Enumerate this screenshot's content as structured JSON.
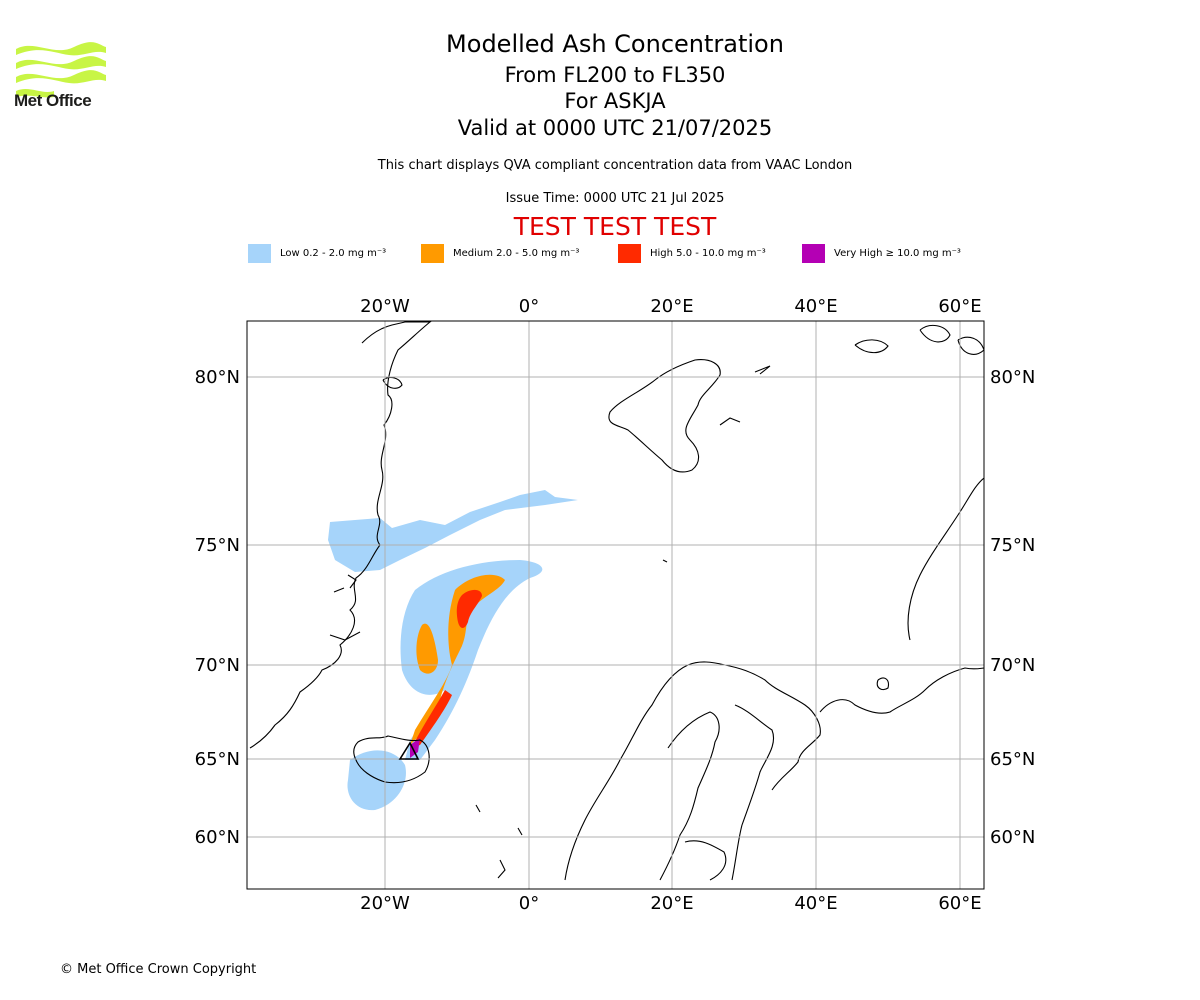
{
  "header": {
    "title": "Modelled Ash Concentration",
    "flight_levels": "From FL200 to FL350",
    "volcano": "For ASKJA",
    "valid_time": "Valid at 0000 UTC 21/07/2025",
    "description": "This chart displays QVA compliant concentration data from VAAC London",
    "issue_time": "Issue Time: 0000 UTC 21 Jul 2025",
    "test_banner": "TEST TEST TEST"
  },
  "logo": {
    "name": "Met Office",
    "accent_color": "#c8f545"
  },
  "legend": [
    {
      "label": "Low 0.2 - 2.0 mg m⁻³",
      "color": "#a6d4fa"
    },
    {
      "label": "Medium 2.0 - 5.0 mg m⁻³",
      "color": "#ff9a00"
    },
    {
      "label": "High 5.0 - 10.0 mg m⁻³",
      "color": "#ff2a00"
    },
    {
      "label": "Very High  ≥  10.0 mg m⁻³",
      "color": "#b400b4"
    }
  ],
  "map": {
    "longitude_ticks": [
      "20°W",
      "0°",
      "20°E",
      "40°E",
      "60°E"
    ],
    "latitude_ticks": [
      "80°N",
      "75°N",
      "70°N",
      "65°N",
      "60°N"
    ],
    "gridlines": true,
    "volcano_marker": "triangle"
  },
  "footer": {
    "copyright": "© Met Office Crown Copyright"
  }
}
